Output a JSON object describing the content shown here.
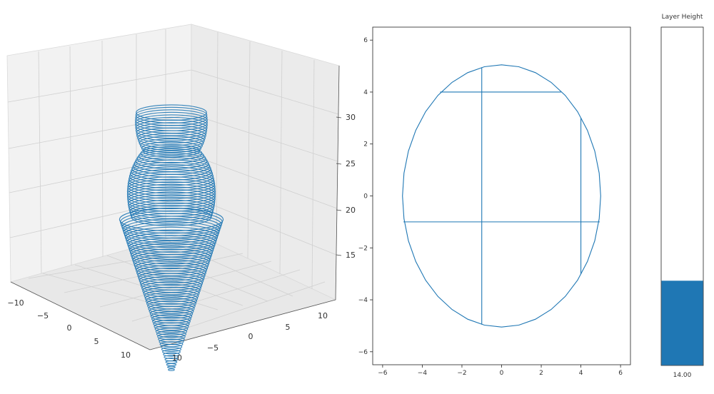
{
  "accent_color": "#1f77b4",
  "chart_data": [
    {
      "type": "line",
      "subtype": "3d-wireframe",
      "description_shape": "stack of horizontal elliptical layer rings: cone tapering to bottom, topped by two stacked spheres",
      "x_ticks": [
        "−10",
        "−5",
        "0",
        "5",
        "10"
      ],
      "y_ticks": [
        "−5",
        "0",
        "5",
        "10"
      ],
      "z_ticks": [
        "15",
        "20",
        "25",
        "30"
      ],
      "xlim": [
        -12,
        12
      ],
      "ylim": [
        -8,
        12
      ],
      "zlim": [
        10,
        35
      ],
      "grid": true,
      "layers": {
        "cone": {
          "z_range": [
            7,
            22
          ],
          "radius_range": [
            0.3,
            6.5
          ]
        },
        "lower_sphere": {
          "z_center": 24.5,
          "radius": 5.5
        },
        "upper_sphere": {
          "z_center": 31.5,
          "radius": 4.5
        }
      }
    },
    {
      "type": "line",
      "subtype": "layer-slice",
      "xlim": [
        -6.5,
        6.5
      ],
      "ylim": [
        -6.5,
        6.5
      ],
      "x_ticks": [
        -6,
        -4,
        -2,
        0,
        2,
        4,
        6
      ],
      "y_ticks": [
        -6,
        -4,
        -2,
        0,
        2,
        4,
        6
      ],
      "x_tick_labels": [
        "−6",
        "−4",
        "−2",
        "0",
        "2",
        "4",
        "6"
      ],
      "y_tick_labels": [
        "−6",
        "−4",
        "−2",
        "0",
        "2",
        "4",
        "6"
      ],
      "ellipse": {
        "cx": 0,
        "cy": 0,
        "rx": 5.0,
        "ry": 5.05
      },
      "segments": [
        {
          "x": [
            -3.1,
            3.0
          ],
          "y": [
            4.0,
            4.0
          ]
        },
        {
          "x": [
            -1.0,
            -1.0
          ],
          "y": [
            4.95,
            -4.95
          ]
        },
        {
          "x": [
            4.0,
            4.0
          ],
          "y": [
            3.0,
            -3.0
          ]
        },
        {
          "x": [
            -4.95,
            4.95
          ],
          "y": [
            -1.0,
            -1.0
          ]
        }
      ],
      "grid": false
    },
    {
      "type": "bar",
      "subtype": "vertical-slider",
      "title": "Layer Height",
      "value": 14.0,
      "value_label": "14.00",
      "range": [
        7,
        35
      ]
    }
  ]
}
